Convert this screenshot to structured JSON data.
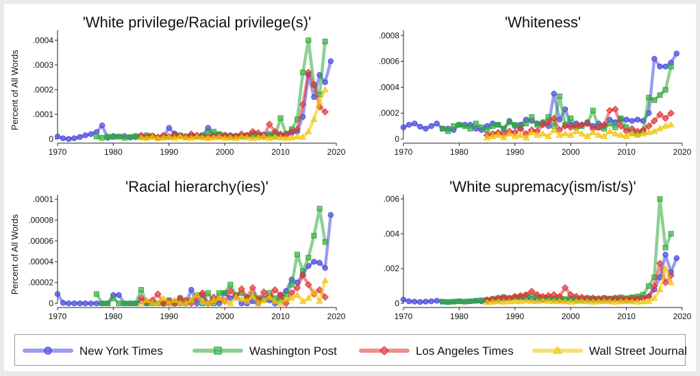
{
  "legend": [
    {
      "name": "New York Times",
      "color": "#4a4ae0",
      "marker": "circle"
    },
    {
      "name": "Washington Post",
      "color": "#2eaa3a",
      "marker": "square"
    },
    {
      "name": "Los Angeles Times",
      "color": "#e03535",
      "marker": "diamond"
    },
    {
      "name": "Wall Street Journal",
      "color": "#f2c400",
      "marker": "triangle"
    }
  ],
  "chart_data": [
    {
      "type": "line",
      "title": "'White privilege/Racial privilege(s)'",
      "ylabel": "Percent of All Words",
      "xlim": [
        1970,
        2020
      ],
      "ylim": [
        0,
        0.00043
      ],
      "xticks": [
        1970,
        1980,
        1990,
        2000,
        2010,
        2020
      ],
      "yticks": [
        0,
        0.0001,
        0.0002,
        0.0003,
        0.0004
      ],
      "ytick_labels": [
        "0",
        ".0001",
        ".0002",
        ".0003",
        ".0004"
      ],
      "series": [
        {
          "name": "New York Times",
          "x_start": 1970,
          "values": [
            1e-05,
            3e-06,
            0.0,
            3e-06,
            8e-06,
            1.5e-05,
            2e-05,
            2.8e-05,
            5.5e-05,
            5e-06,
            1.2e-05,
            1e-05,
            1.2e-05,
            6e-06,
            8e-06,
            1e-05,
            8e-06,
            1.2e-05,
            4e-06,
            1e-05,
            4.5e-05,
            2.2e-05,
            1.5e-05,
            1e-05,
            1.2e-05,
            1e-05,
            1.5e-05,
            4.5e-05,
            1.5e-05,
            1.8e-05,
            1.2e-05,
            1.5e-05,
            1e-05,
            1.2e-05,
            1.5e-05,
            1.2e-05,
            1.5e-05,
            1.8e-05,
            1.5e-05,
            2e-05,
            1.5e-05,
            2.2e-05,
            2.5e-05,
            3e-05,
            9e-05,
            0.00026,
            0.00017,
            0.00026,
            0.00023,
            0.000315
          ]
        },
        {
          "name": "Washington Post",
          "x_start": 1977,
          "values": [
            1e-05,
            5e-06,
            1e-05,
            8e-06,
            1e-05,
            5e-06,
            8e-06,
            1.2e-05,
            1e-05,
            1.5e-05,
            1.2e-05,
            5e-06,
            1e-05,
            8e-06,
            1.2e-05,
            1.5e-05,
            1e-05,
            1.2e-05,
            1e-05,
            1.5e-05,
            2.5e-05,
            3e-05,
            2e-05,
            1.5e-05,
            1e-05,
            1.2e-05,
            1e-05,
            1.5e-05,
            2e-05,
            1.5e-05,
            1e-05,
            2e-05,
            1e-05,
            8.5e-05,
            2e-05,
            4e-05,
            8e-05,
            0.00027,
            0.0004,
            0.00022,
            0.00018,
            0.000395
          ]
        },
        {
          "name": "Los Angeles Times",
          "x_start": 1985,
          "values": [
            1.5e-05,
            1e-05,
            1.2e-05,
            8e-06,
            1.5e-05,
            1e-05,
            1.8e-05,
            1.2e-05,
            1e-05,
            2e-05,
            1.5e-05,
            1e-05,
            8e-06,
            1.2e-05,
            1e-05,
            1.5e-05,
            1e-05,
            1.2e-05,
            2e-05,
            1.5e-05,
            3e-05,
            2.5e-05,
            1e-05,
            6e-05,
            3e-05,
            2e-05,
            1.5e-05,
            3e-05,
            4e-05,
            0.00014,
            0.00027,
            0.00022,
            0.00013,
            0.00011
          ]
        },
        {
          "name": "Wall Street Journal",
          "x_start": 1985,
          "values": [
            5e-06,
            3e-06,
            8e-06,
            3e-06,
            5e-06,
            8e-06,
            3e-06,
            1e-05,
            5e-06,
            3e-06,
            8e-06,
            5e-06,
            3e-06,
            5e-06,
            8e-06,
            3e-06,
            5e-06,
            3e-06,
            8e-06,
            5e-06,
            3e-06,
            5e-06,
            1e-05,
            3e-06,
            8e-06,
            5e-06,
            3e-06,
            5e-06,
            1e-05,
            8e-06,
            3e-05,
            8e-05,
            0.00015,
            0.0002
          ]
        }
      ]
    },
    {
      "type": "line",
      "title": "'Whiteness'",
      "ylabel": "",
      "xlim": [
        1970,
        2020
      ],
      "ylim": [
        0,
        0.00082
      ],
      "xticks": [
        1970,
        1980,
        1990,
        2000,
        2010,
        2020
      ],
      "yticks": [
        0,
        0.0002,
        0.0004,
        0.0006,
        0.0008
      ],
      "ytick_labels": [
        "0",
        ".0002",
        ".0004",
        ".0006",
        ".0008"
      ],
      "series": [
        {
          "name": "New York Times",
          "x_start": 1970,
          "values": [
            9e-05,
            0.00011,
            0.00012,
            9.5e-05,
            8e-05,
            0.0001,
            0.00012,
            8e-05,
            8e-05,
            7e-05,
            0.00011,
            0.00011,
            0.00011,
            8e-05,
            7e-05,
            0.0001,
            0.00012,
            0.00011,
            8e-05,
            0.00014,
            0.0001,
            0.00011,
            0.00015,
            0.00014,
            0.00012,
            0.00013,
            0.0001,
            0.00035,
            0.00015,
            0.00023,
            0.00011,
            0.00012,
            0.00011,
            0.00013,
            0.0001,
            0.00012,
            0.0001,
            0.00015,
            0.00013,
            0.00015,
            0.00015,
            0.00014,
            0.00015,
            0.00014,
            0.0002,
            0.00062,
            0.00056,
            0.00056,
            0.00059,
            0.00066
          ]
        },
        {
          "name": "Washington Post",
          "x_start": 1977,
          "values": [
            8e-05,
            6e-05,
            0.0001,
            0.00011,
            0.0001,
            8e-05,
            0.00012,
            9e-05,
            7e-05,
            0.0001,
            0.00011,
            8e-05,
            0.00013,
            0.00011,
            9e-05,
            0.00012,
            0.00017,
            0.00011,
            0.00012,
            0.00017,
            0.0001,
            0.00033,
            0.00011,
            0.00016,
            9e-05,
            0.0001,
            0.00012,
            0.00022,
            9e-05,
            8e-05,
            0.00012,
            9e-05,
            0.00016,
            9e-05,
            5e-05,
            4e-05,
            6e-05,
            0.00032,
            0.0003,
            0.00034,
            0.00038,
            0.00056
          ]
        },
        {
          "name": "Los Angeles Times",
          "x_start": 1985,
          "values": [
            3e-05,
            4e-05,
            5e-05,
            4e-05,
            6e-05,
            5e-05,
            8e-05,
            4e-05,
            7e-05,
            6e-05,
            0.00011,
            0.00013,
            0.00016,
            7e-05,
            0.0001,
            9e-05,
            0.0001,
            0.00011,
            0.00012,
            8e-05,
            9e-05,
            0.00011,
            0.00022,
            0.00023,
            0.0001,
            6e-05,
            8e-05,
            6e-05,
            7e-05,
            0.0001,
            0.00014,
            0.00019,
            0.00016,
            0.0002
          ]
        },
        {
          "name": "Wall Street Journal",
          "x_start": 1985,
          "values": [
            1e-05,
            2e-05,
            3e-05,
            1e-05,
            4e-05,
            2e-05,
            3e-05,
            1e-05,
            5e-05,
            3e-05,
            4e-05,
            2e-05,
            7e-05,
            3e-05,
            4e-05,
            3e-05,
            6e-05,
            4e-05,
            2e-05,
            5e-05,
            3e-05,
            2e-05,
            6e-05,
            4e-05,
            3e-05,
            2e-05,
            4e-05,
            3e-05,
            4e-05,
            5e-05,
            6e-05,
            8e-05,
            0.0001,
            0.00011
          ]
        }
      ]
    },
    {
      "type": "line",
      "title": "'Racial hierarchy(ies)'",
      "ylabel": "Percent of All Words",
      "xlim": [
        1970,
        2020
      ],
      "ylim": [
        0,
        0.000102
      ],
      "xticks": [
        1970,
        1980,
        1990,
        2000,
        2010,
        2020
      ],
      "yticks": [
        0,
        2e-05,
        4e-05,
        6e-05,
        8e-05,
        0.0001
      ],
      "ytick_labels": [
        "0",
        ".00002",
        ".00004",
        ".00006",
        ".00008",
        ".0001"
      ],
      "series": [
        {
          "name": "New York Times",
          "x_start": 1970,
          "values": [
            9e-06,
            5e-07,
            0.0,
            0.0,
            0.0,
            0.0,
            0.0,
            0.0,
            0.0,
            0.0,
            8e-06,
            8e-06,
            0.0,
            0.0,
            0.0,
            2e-06,
            0.0,
            0.0,
            0.0,
            0.0,
            0.0,
            2e-06,
            0.0,
            0.0,
            1.3e-05,
            0.0,
            8e-06,
            0.0,
            3e-06,
            0.0,
            1e-05,
            5e-06,
            8e-06,
            0.0,
            0.0,
            2e-06,
            0.0,
            5e-06,
            3e-06,
            0.0,
            8e-06,
            1.2e-05,
            2.3e-05,
            2e-05,
            2.8e-05,
            3.6e-05,
            4e-05,
            3.9e-05,
            3.4e-05,
            8.5e-05
          ]
        },
        {
          "name": "Washington Post",
          "x_start": 1977,
          "values": [
            9e-06,
            0.0,
            0.0,
            5e-06,
            0.0,
            0.0,
            0.0,
            0.0,
            1.3e-05,
            0.0,
            0.0,
            0.0,
            0.0,
            3e-06,
            0.0,
            5e-06,
            0.0,
            3e-06,
            8e-06,
            0.0,
            1e-05,
            0.0,
            1e-05,
            1e-05,
            1.8e-05,
            8e-06,
            1e-05,
            5e-06,
            8e-06,
            5e-06,
            3e-06,
            1e-05,
            5e-06,
            3e-06,
            9e-06,
            1.8e-05,
            4.7e-05,
            3.1e-05,
            4.4e-05,
            6.5e-05,
            9.1e-05,
            5.9e-05
          ]
        },
        {
          "name": "Los Angeles Times",
          "x_start": 1985,
          "values": [
            5e-06,
            2e-06,
            3e-06,
            9e-06,
            0.0,
            2e-06,
            0.0,
            5e-06,
            3e-06,
            0.0,
            6e-06,
            1e-05,
            0.0,
            6e-06,
            4e-06,
            2e-06,
            1.2e-05,
            6e-06,
            1.4e-05,
            6e-06,
            1.5e-05,
            3e-06,
            1.1e-05,
            6e-06,
            1.3e-05,
            8e-06,
            0.0,
            1e-05,
            1.5e-05,
            2.7e-05,
            1.8e-05,
            9e-06,
            1.3e-05,
            6e-06
          ]
        },
        {
          "name": "Wall Street Journal",
          "x_start": 1985,
          "values": [
            0.0,
            3e-06,
            0.0,
            0.0,
            5e-06,
            0.0,
            3e-06,
            0.0,
            0.0,
            3e-06,
            8e-06,
            2e-06,
            0.0,
            3e-06,
            5e-06,
            2e-06,
            0.0,
            6e-06,
            4e-06,
            2e-06,
            7e-06,
            0.0,
            3e-06,
            6e-06,
            2e-06,
            0.0,
            4e-06,
            5e-06,
            8e-06,
            2e-06,
            5e-06,
            1.1e-05,
            2e-06,
            2.2e-05
          ]
        }
      ]
    },
    {
      "type": "line",
      "title": "'White supremacy(ism/ist/s)'",
      "ylabel": "",
      "xlim": [
        1970,
        2020
      ],
      "ylim": [
        0,
        0.0061
      ],
      "xticks": [
        1970,
        1980,
        1990,
        2000,
        2010,
        2020
      ],
      "yticks": [
        0,
        0.002,
        0.004,
        0.006
      ],
      "ytick_labels": [
        "0",
        ".002",
        ".004",
        ".006"
      ],
      "series": [
        {
          "name": "New York Times",
          "x_start": 1970,
          "values": [
            0.00022,
            0.00012,
            0.0001,
            8e-05,
            0.0001,
            0.00012,
            0.00015,
            0.0001,
            8e-05,
            0.0001,
            0.00012,
            0.0001,
            0.00012,
            0.00015,
            0.00012,
            0.00015,
            0.00018,
            0.0002,
            0.00025,
            0.0003,
            0.00035,
            0.0003,
            0.00028,
            0.00025,
            0.00022,
            0.0002,
            0.00025,
            0.00022,
            0.00018,
            0.0002,
            0.00022,
            0.0002,
            0.00018,
            0.0002,
            0.00018,
            0.0002,
            0.00018,
            0.0002,
            0.00022,
            0.0002,
            0.00018,
            0.0002,
            0.00025,
            0.0003,
            0.0004,
            0.0008,
            0.0015,
            0.0028,
            0.0018,
            0.0026
          ]
        },
        {
          "name": "Washington Post",
          "x_start": 1977,
          "values": [
            0.0001,
            8e-05,
            0.0001,
            0.00012,
            0.0001,
            0.00012,
            0.00015,
            0.00018,
            0.0002,
            0.00025,
            0.0003,
            0.00035,
            0.0003,
            0.00035,
            0.0004,
            0.00045,
            0.0004,
            0.00035,
            0.0003,
            0.0003,
            0.00028,
            0.0003,
            0.00025,
            0.00028,
            0.00025,
            0.00028,
            0.0003,
            0.00028,
            0.00025,
            0.0003,
            0.00028,
            0.0003,
            0.00035,
            0.0003,
            0.00035,
            0.0004,
            0.0005,
            0.001,
            0.0015,
            0.006,
            0.0032,
            0.004
          ]
        },
        {
          "name": "Los Angeles Times",
          "x_start": 1985,
          "values": [
            0.0002,
            0.00025,
            0.0003,
            0.00035,
            0.0003,
            0.0004,
            0.00045,
            0.0005,
            0.0007,
            0.0005,
            0.0004,
            0.00045,
            0.0005,
            0.0004,
            0.0009,
            0.0005,
            0.0004,
            0.00035,
            0.0003,
            0.0003,
            0.00028,
            0.0003,
            0.00025,
            0.0003,
            0.00028,
            0.00025,
            0.0003,
            0.00028,
            0.0003,
            0.0004,
            0.001,
            0.0023,
            0.0012,
            0.0016
          ]
        },
        {
          "name": "Wall Street Journal",
          "x_start": 1985,
          "values": [
            5e-05,
            8e-05,
            0.0001,
            8e-05,
            0.0001,
            0.00012,
            0.0001,
            0.00015,
            0.00012,
            0.0001,
            0.00015,
            0.00012,
            0.0001,
            0.00012,
            0.0001,
            8e-05,
            0.0001,
            0.00012,
            0.0001,
            8e-05,
            0.0001,
            0.00012,
            0.0001,
            8e-05,
            0.0001,
            0.00012,
            0.0001,
            8e-05,
            0.0001,
            0.00012,
            0.0003,
            0.0008,
            0.002,
            0.0012
          ]
        }
      ]
    }
  ]
}
